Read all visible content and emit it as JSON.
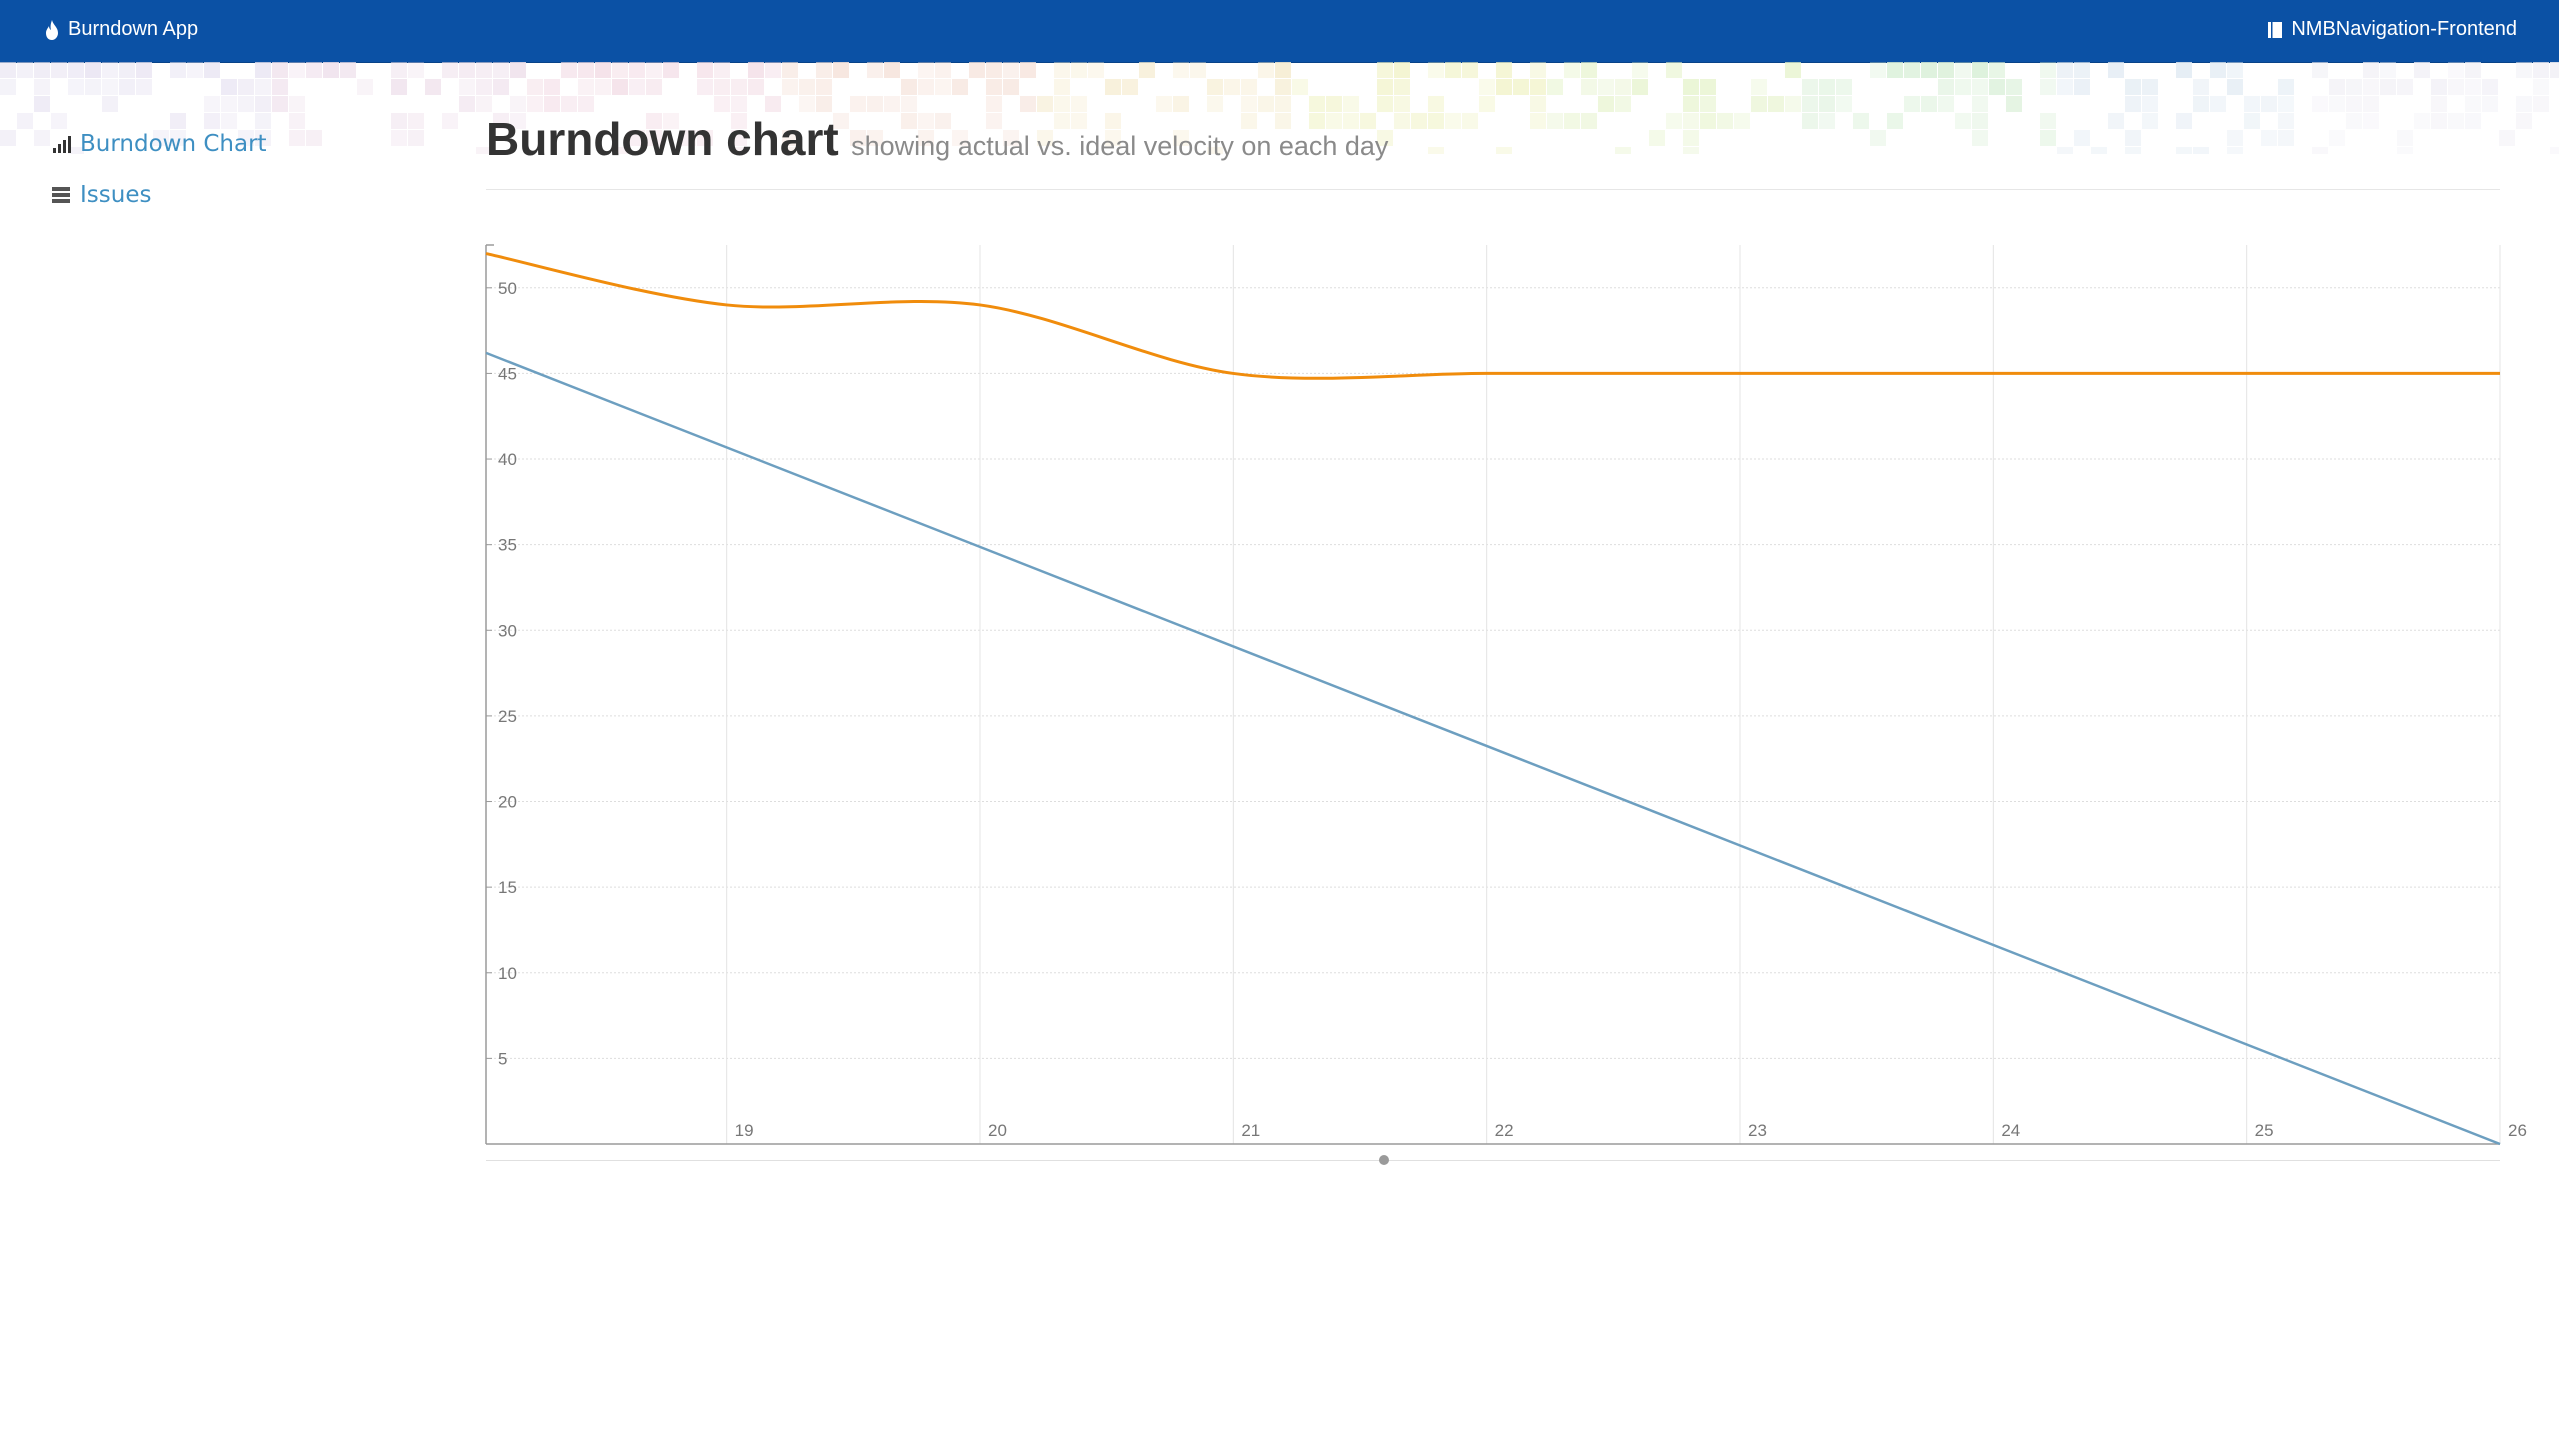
{
  "header": {
    "app_title": "Burndown App",
    "repo_name": "NMBNavigation-Frontend",
    "brand_color": "#0b51a5"
  },
  "sidebar": {
    "items": [
      {
        "label": "Burndown Chart",
        "icon": "bar-chart-icon"
      },
      {
        "label": "Issues",
        "icon": "list-icon"
      }
    ],
    "link_color": "#3e8fc2"
  },
  "page": {
    "title": "Burndown chart",
    "subtitle": "showing actual vs. ideal velocity on each day"
  },
  "chart_data": {
    "type": "line",
    "title": "",
    "xlabel": "",
    "ylabel": "",
    "xlim": [
      18.05,
      26.0
    ],
    "ylim": [
      0,
      52.5
    ],
    "x_ticks": [
      19,
      20,
      21,
      22,
      23,
      24,
      25,
      26
    ],
    "y_ticks": [
      5,
      10,
      15,
      20,
      25,
      30,
      35,
      40,
      45,
      50
    ],
    "grid": true,
    "series": [
      {
        "color": "#f08c0c",
        "curve": "smooth",
        "x": [
          18.05,
          19,
          20,
          21,
          22,
          23,
          24,
          25,
          26
        ],
        "y": [
          52,
          49,
          49,
          45,
          45,
          45,
          45,
          45,
          45
        ]
      },
      {
        "color": "#6d9fc0",
        "curve": "linear",
        "x": [
          18.05,
          26
        ],
        "y": [
          46.2,
          0
        ]
      }
    ]
  }
}
